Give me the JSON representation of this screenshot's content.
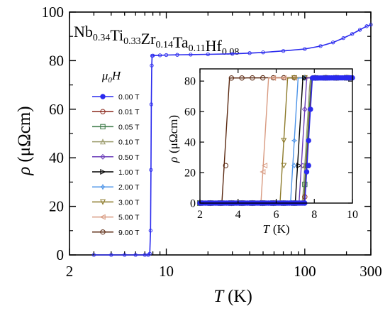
{
  "chart_data": [
    {
      "type": "line",
      "panel": "main",
      "title": "Nb0.34Ti0.33Zr0.14Ta0.11Hf0.08",
      "title_parts": {
        "elements": [
          "Nb",
          "Ti",
          "Zr",
          "Ta",
          "Hf"
        ],
        "subscripts": [
          "0.34",
          "0.33",
          "0.14",
          "0.11",
          "0.08"
        ]
      },
      "xlabel": {
        "symbol": "T",
        "unit": "(K)"
      },
      "ylabel": {
        "symbol": "ρ",
        "unit": "(μΩcm)"
      },
      "xscale": "log",
      "xlim": [
        2,
        300
      ],
      "ylim": [
        0,
        100
      ],
      "xticks": [
        2,
        10,
        100,
        300
      ],
      "xtick_labels": [
        "2",
        "10",
        "100",
        "300"
      ],
      "yticks": [
        0,
        20,
        40,
        60,
        80,
        100
      ],
      "ytick_labels": [
        "0",
        "20",
        "40",
        "60",
        "80",
        "100"
      ],
      "grid": false,
      "series": [
        {
          "color": "#2a2aee",
          "x": [
            3,
            4,
            5,
            6,
            7,
            7.4,
            7.6,
            7.7,
            7.75,
            7.8,
            7.85,
            7.9,
            8,
            9,
            10,
            12,
            15,
            20,
            30,
            40,
            50,
            70,
            100,
            130,
            160,
            190,
            220,
            250,
            280,
            300
          ],
          "y": [
            0,
            0,
            0,
            0,
            0,
            0,
            0.5,
            10,
            35,
            62,
            78,
            82,
            82.1,
            82.2,
            82.3,
            82.4,
            82.5,
            82.6,
            82.8,
            83.1,
            83.4,
            84,
            84.8,
            86,
            87.5,
            89.3,
            91,
            92.7,
            94.2,
            94.8
          ]
        }
      ]
    },
    {
      "type": "line",
      "panel": "inset",
      "xlabel": {
        "symbol": "T",
        "unit": "(K)"
      },
      "ylabel": {
        "symbol": "ρ",
        "unit": "(μΩcm)"
      },
      "xlim": [
        2,
        10
      ],
      "ylim": [
        0,
        88
      ],
      "xticks": [
        2,
        4,
        6,
        8,
        10
      ],
      "xtick_labels": [
        "2",
        "4",
        "6",
        "8",
        "10"
      ],
      "yticks": [
        0,
        20,
        40,
        60,
        80
      ],
      "ytick_labels": [
        "0",
        "20",
        "40",
        "60",
        "80"
      ],
      "grid": false,
      "legend": {
        "title": {
          "symbol": "μ",
          "sub": "0",
          "var": "H"
        },
        "placement": "left of inset"
      },
      "plateau": 82,
      "series": [
        {
          "name": "0.00 T",
          "color": "#2a2aee",
          "marker": "circle-filled",
          "tc": 7.7
        },
        {
          "name": "0.01 T",
          "color": "#8b2a1e",
          "marker": "circle",
          "tc": 7.68
        },
        {
          "name": "0.05 T",
          "color": "#3c7a48",
          "marker": "square",
          "tc": 7.64
        },
        {
          "name": "0.10 T",
          "color": "#9a9a6a",
          "marker": "triangle",
          "tc": 7.58
        },
        {
          "name": "0.50 T",
          "color": "#6a3cb8",
          "marker": "diamond",
          "tc": 7.4
        },
        {
          "name": "1.00 T",
          "color": "#000000",
          "marker": "triangle-right",
          "tc": 7.2
        },
        {
          "name": "2.00 T",
          "color": "#4d94e8",
          "marker": "star",
          "tc": 6.95
        },
        {
          "name": "3.00 T",
          "color": "#8c7a2a",
          "marker": "triangle-down",
          "tc": 6.4
        },
        {
          "name": "5.00 T",
          "color": "#d89a80",
          "marker": "triangle-left",
          "tc": 5.4
        },
        {
          "name": "9.00 T",
          "color": "#5a2810",
          "marker": "circle",
          "tc": 3.35
        }
      ]
    }
  ]
}
